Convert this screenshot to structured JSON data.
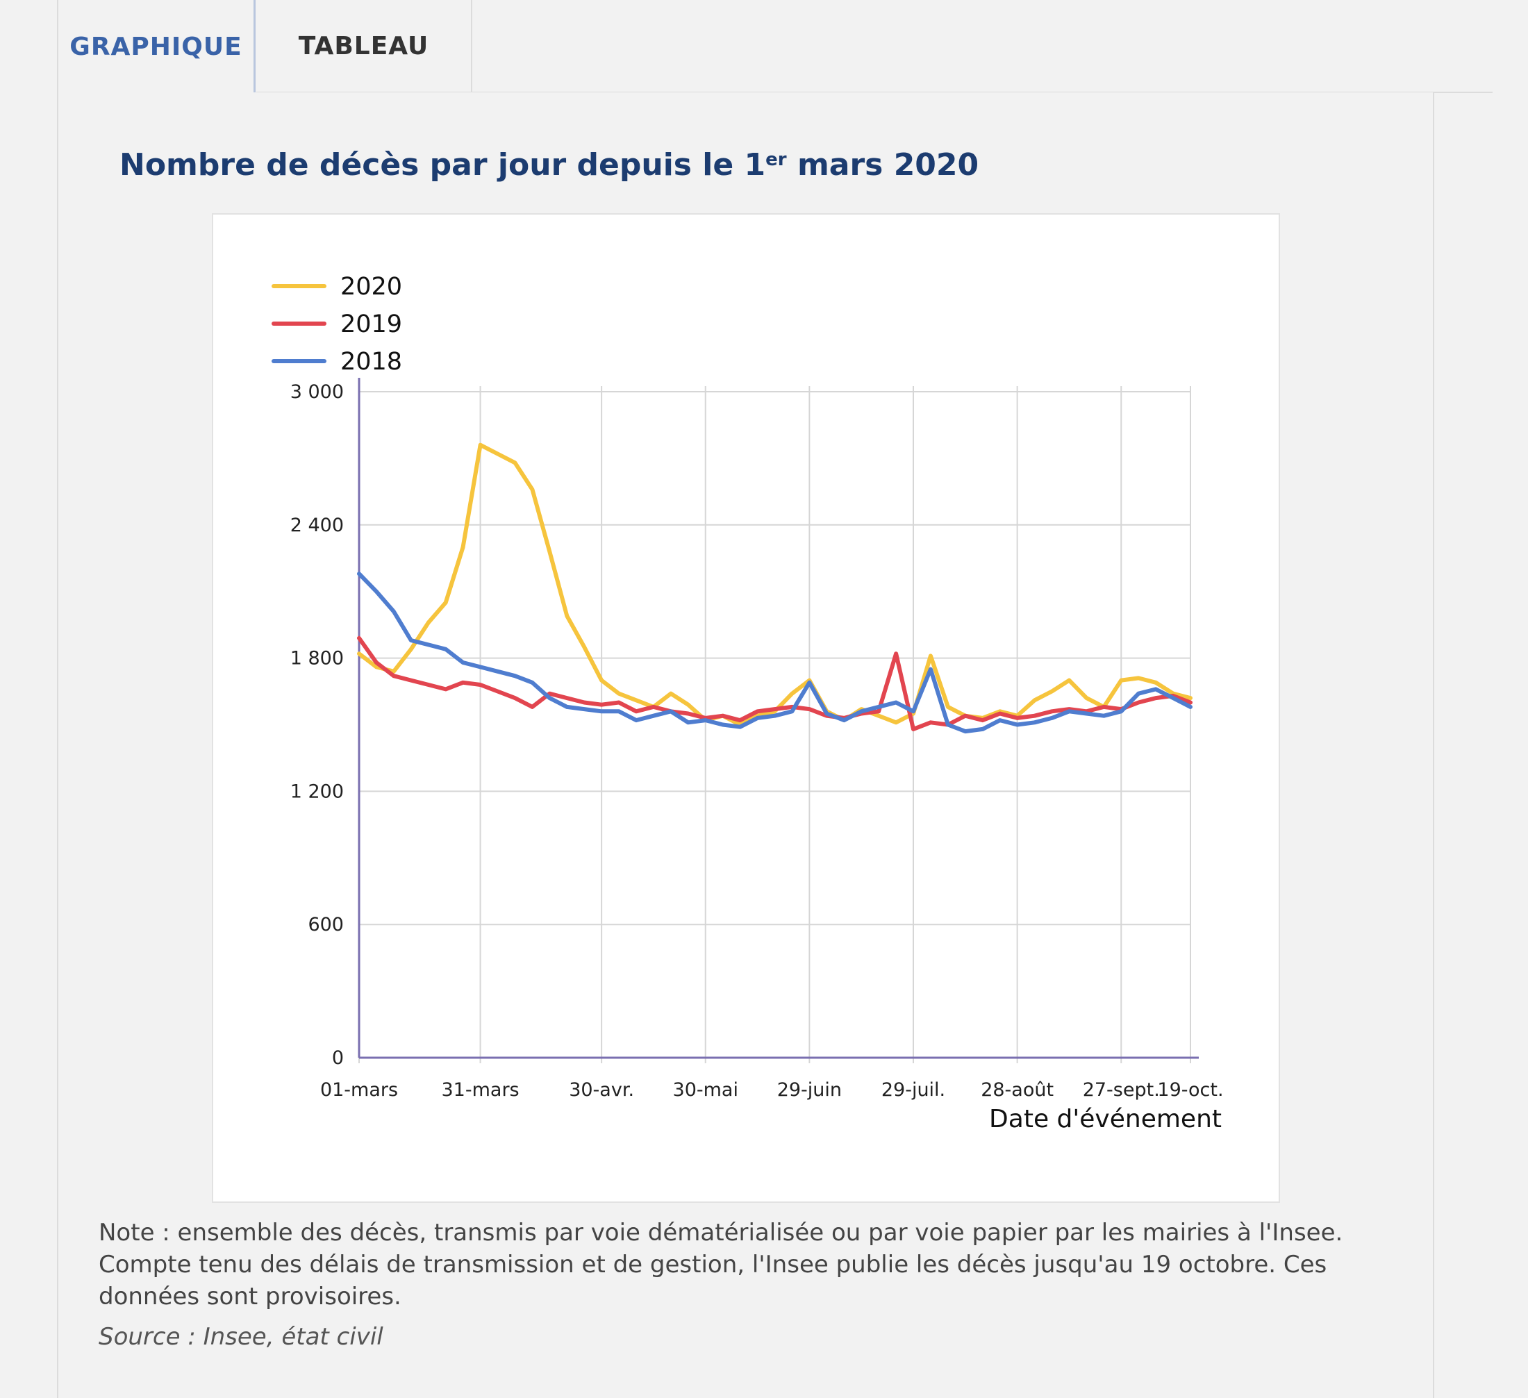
{
  "tabs": [
    {
      "label": "GRAPHIQUE",
      "active": true
    },
    {
      "label": "TABLEAU",
      "active": false
    }
  ],
  "chart": {
    "title_main": "Nombre de décès par jour depuis le 1",
    "title_sup": "er",
    "title_end": " mars 2020",
    "note": "Note : ensemble des décès, transmis par voie dématérialisée ou par voie papier par les mairies à l'Insee. Compte tenu des délais de transmission et de gestion, l'Insee publie les décès jusqu'au 19 octobre. Ces données sont provisoires.",
    "source": "Source : Insee, état civil"
  },
  "chart_data": {
    "type": "line",
    "title": "Nombre de décès par jour depuis le 1er mars 2020",
    "xlabel": "Date d'événement",
    "ylabel": "",
    "ylim": [
      0,
      3000
    ],
    "yticks": [
      {
        "value": 0,
        "label": "0"
      },
      {
        "value": 600,
        "label": "600"
      },
      {
        "value": 1200,
        "label": "1 200"
      },
      {
        "value": 1800,
        "label": "1 800"
      },
      {
        "value": 2400,
        "label": "2 400"
      },
      {
        "value": 3000,
        "label": "3 000"
      }
    ],
    "xlim": [
      "01-mars",
      "19-oct."
    ],
    "xticks": [
      "01-mars",
      "31-mars",
      "30-avr.",
      "30-mai",
      "29-juin",
      "29-juil.",
      "28-août",
      "27-sept.",
      "19-oct."
    ],
    "grid": true,
    "legend_position": "top-left",
    "x": [
      "01-mars",
      "05-mars",
      "10-mars",
      "15-mars",
      "20-mars",
      "25-mars",
      "28-mars",
      "31-mars",
      "03-avr.",
      "06-avr.",
      "10-avr.",
      "15-avr.",
      "20-avr.",
      "25-avr.",
      "30-avr.",
      "05-mai",
      "10-mai",
      "15-mai",
      "20-mai",
      "25-mai",
      "30-mai",
      "05-juin",
      "10-juin",
      "15-juin",
      "20-juin",
      "25-juin",
      "29-juin",
      "05-juil.",
      "10-juil.",
      "15-juil.",
      "20-juil.",
      "25-juil.",
      "29-juil.",
      "03-août",
      "08-août",
      "13-août",
      "18-août",
      "23-août",
      "28-août",
      "02-sept.",
      "07-sept.",
      "12-sept.",
      "17-sept.",
      "22-sept.",
      "27-sept.",
      "02-oct.",
      "07-oct.",
      "12-oct.",
      "19-oct."
    ],
    "series": [
      {
        "name": "2020",
        "color": "#f6c43d",
        "values": [
          1820,
          1760,
          1740,
          1840,
          1960,
          2050,
          2300,
          2760,
          2720,
          2680,
          2560,
          2280,
          1990,
          1850,
          1700,
          1640,
          1610,
          1580,
          1640,
          1590,
          1520,
          1540,
          1500,
          1540,
          1560,
          1640,
          1700,
          1560,
          1520,
          1570,
          1540,
          1510,
          1550,
          1810,
          1580,
          1540,
          1530,
          1560,
          1540,
          1610,
          1650,
          1700,
          1620,
          1580,
          1700,
          1710,
          1690,
          1640,
          1620
        ]
      },
      {
        "name": "2019",
        "color": "#e2454f",
        "values": [
          1890,
          1780,
          1720,
          1700,
          1680,
          1660,
          1690,
          1680,
          1650,
          1620,
          1580,
          1640,
          1620,
          1600,
          1590,
          1600,
          1560,
          1580,
          1560,
          1550,
          1530,
          1540,
          1520,
          1560,
          1570,
          1580,
          1570,
          1540,
          1530,
          1550,
          1560,
          1820,
          1480,
          1510,
          1500,
          1540,
          1520,
          1550,
          1530,
          1540,
          1560,
          1570,
          1560,
          1580,
          1570,
          1600,
          1620,
          1630,
          1600
        ]
      },
      {
        "name": "2018",
        "color": "#4f7dcf",
        "values": [
          2180,
          2100,
          2010,
          1880,
          1860,
          1840,
          1780,
          1760,
          1740,
          1720,
          1690,
          1620,
          1580,
          1570,
          1560,
          1560,
          1520,
          1540,
          1560,
          1510,
          1520,
          1500,
          1490,
          1530,
          1540,
          1560,
          1690,
          1550,
          1520,
          1560,
          1580,
          1600,
          1560,
          1750,
          1500,
          1470,
          1480,
          1520,
          1500,
          1510,
          1530,
          1560,
          1550,
          1540,
          1560,
          1640,
          1660,
          1620,
          1580
        ]
      }
    ]
  }
}
